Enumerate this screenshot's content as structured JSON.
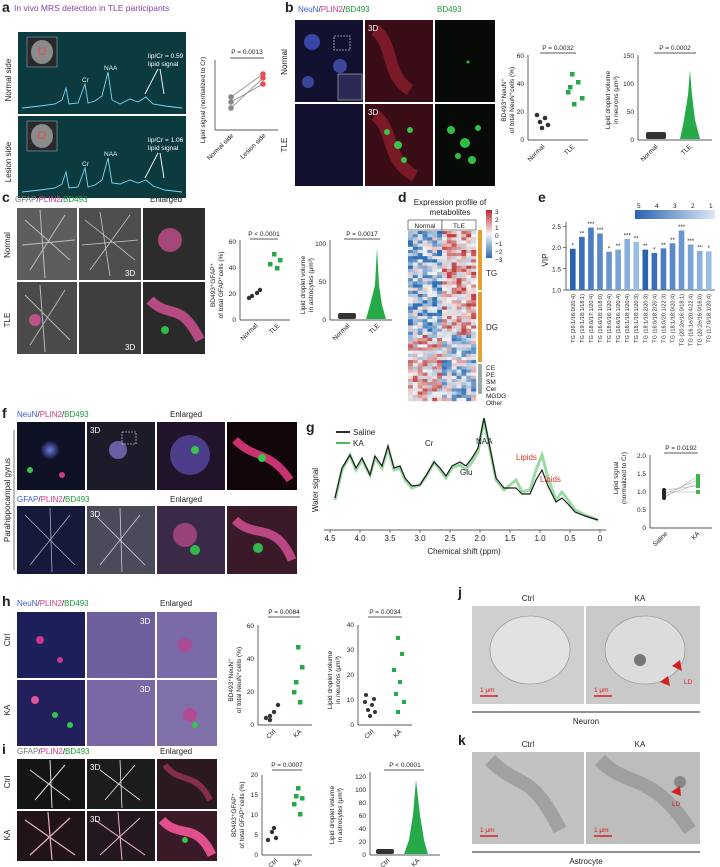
{
  "panels": {
    "a": {
      "letter": "a",
      "title": "In vivo MRS detection in TLE participants",
      "row_labels": [
        "Normal side",
        "Lesion side"
      ],
      "spec1": {
        "peaks": [
          "NAA",
          "Cr"
        ],
        "note": [
          "lip/Cr = 0.59",
          "lipid signal"
        ]
      },
      "spec2": {
        "peaks": [
          "NAA",
          "Cr"
        ],
        "note": [
          "lip/Cr = 1.06",
          "lipid signal"
        ]
      },
      "plot": {
        "pvalue": "P = 0.0013",
        "ylabel": "Lipid signal (normalized to Cr)",
        "xticks": [
          "Normal side",
          "Lesion side"
        ]
      }
    },
    "b": {
      "letter": "b",
      "stain_title": [
        "NeuN",
        "/",
        "PLIN2",
        "/",
        "BD493"
      ],
      "single_title": "BD493",
      "tag_3d": "3D",
      "row_labels": [
        "Normal",
        "TLE"
      ],
      "plot1": {
        "pvalue": "P = 0.0032",
        "ylabel": [
          "BD493⁺NeuN⁺",
          "of total NeuN⁺cells (%)"
        ],
        "yticks": [
          "0",
          "20",
          "40",
          "60"
        ],
        "xticks": [
          "Normal",
          "TLE"
        ]
      },
      "plot2": {
        "pvalue": "P = 0.0002",
        "ylabel": [
          "Lipid droplet volume",
          "in neurons (μm³)"
        ],
        "yticks": [
          "0",
          "50",
          "100",
          "150"
        ],
        "xticks": [
          "Normal",
          "TLE"
        ]
      }
    },
    "c": {
      "letter": "c",
      "stain_title": [
        "GFAP",
        "/",
        "PLIN2",
        "/",
        "BD493"
      ],
      "enlarged": "Enlarged",
      "tag_3d": "3D",
      "row_labels": [
        "Normal",
        "TLE"
      ],
      "plot1": {
        "pvalue": "P < 0.0001",
        "ylabel": [
          "BD493⁺GFAP⁺",
          "of total GFAP⁺cells (%)"
        ],
        "yticks": [
          "0",
          "20",
          "40",
          "60"
        ],
        "xticks": [
          "Normal",
          "TLE"
        ]
      },
      "plot2": {
        "pvalue": "P = 0.0017",
        "ylabel": [
          "Lipid droplet volume",
          "in astrocytes (μm³)"
        ],
        "yticks": [
          "0",
          "50",
          "100"
        ],
        "xticks": [
          "Normal",
          "TLE"
        ]
      }
    },
    "d": {
      "letter": "d",
      "title": [
        "Expression profile of",
        "metabolites"
      ],
      "groups": [
        "Normal",
        "TLE"
      ],
      "scale_ticks": [
        "3",
        "2",
        "1",
        "0",
        "−1",
        "−2",
        "−3"
      ],
      "classes": [
        "TG",
        "DG",
        "CE",
        "PE",
        "SM",
        "Cer",
        "MGDG",
        "Other"
      ]
    },
    "e": {
      "letter": "e",
      "ylabel": "VIP",
      "yticks": [
        "1.0",
        "1.5",
        "2.0",
        "2.5"
      ],
      "legend_ticks": [
        "5",
        "4",
        "3",
        "2",
        "1"
      ]
    },
    "f": {
      "letter": "f",
      "side_label": "Parahippocampal gyrus",
      "stain1": [
        "NeuN",
        "/",
        "PLIN2",
        "/",
        "BD493"
      ],
      "stain2": [
        "GFAP",
        "/",
        "PLIN2",
        "/",
        "BD493"
      ],
      "enlarged": "Enlarged",
      "tag_3d": "3D"
    },
    "g": {
      "letter": "g",
      "legend": [
        "Saline",
        "KA"
      ],
      "ylabel": "Water signal",
      "xlabel": "Chemical shift (ppm)",
      "xticks": [
        "4.5",
        "4.0",
        "3.5",
        "3.0",
        "2.5",
        "2.0",
        "1.5",
        "1.0",
        "0.5",
        "0"
      ],
      "peaks": [
        "Cr",
        "NAA",
        "Glu",
        "Lipids",
        "Lipids"
      ],
      "plot": {
        "pvalue": "P = 0.0192",
        "ylabel": [
          "Lipid signal",
          "(normalized to Cr)"
        ],
        "yticks": [
          "0",
          "0.5",
          "1.0",
          "1.5",
          "2.0"
        ],
        "xticks": [
          "Saline",
          "KA"
        ]
      }
    },
    "h": {
      "letter": "h",
      "stain_title": [
        "NeuN",
        "/",
        "PLIN2",
        "/",
        "BD493"
      ],
      "enlarged": "Enlarged",
      "tag_3d": "3D",
      "row_labels": [
        "Ctrl",
        "KA"
      ],
      "plot1": {
        "pvalue": "P = 0.0084",
        "ylabel": [
          "BD493⁺NeuN⁺",
          "of total NeuN⁺cells (%)"
        ],
        "yticks": [
          "0",
          "20",
          "40",
          "60"
        ],
        "xticks": [
          "Ctrl",
          "KA"
        ]
      },
      "plot2": {
        "pvalue": "P = 0.0034",
        "ylabel": [
          "Lipid droplet volume",
          "in neurons (μm³)"
        ],
        "yticks": [
          "0",
          "10",
          "20",
          "30",
          "40"
        ],
        "xticks": [
          "Ctrl",
          "KA"
        ]
      }
    },
    "i": {
      "letter": "i",
      "stain_title": [
        "GFAP",
        "/",
        "PLIN2",
        "/",
        "BD493"
      ],
      "enlarged": "Enlarged",
      "tag_3d": "3D",
      "row_labels": [
        "Ctrl",
        "KA"
      ],
      "plot1": {
        "pvalue": "P = 0.0007",
        "ylabel": [
          "BD493⁺GFAP⁺",
          "of total GFAP⁺cells (%)"
        ],
        "yticks": [
          "0",
          "5",
          "10",
          "15",
          "20"
        ],
        "xticks": [
          "Ctrl",
          "KA"
        ]
      },
      "plot2": {
        "pvalue": "P < 0.0001",
        "ylabel": [
          "Lipid droplet volume",
          "in astrocytes (μm³)"
        ],
        "yticks": [
          "0",
          "20",
          "40",
          "60",
          "80",
          "100",
          "120"
        ],
        "xticks": [
          "Ctrl",
          "KA"
        ]
      }
    },
    "j": {
      "letter": "j",
      "cols": [
        "Ctrl",
        "KA"
      ],
      "scale": [
        "1 μm",
        "1 μm"
      ],
      "ld": "LD",
      "caption": "Neuron"
    },
    "k": {
      "letter": "k",
      "cols": [
        "Ctrl",
        "KA"
      ],
      "scale": [
        "1 μm",
        "1 μm"
      ],
      "ld": "LD",
      "caption": "Astrocyte"
    }
  },
  "chart_data": [
    {
      "type": "bar",
      "panel": "e",
      "categories": [
        "TG (26:1/16:0/20:4)",
        "TG (19:1/18:1/18:1)",
        "TG (18:0/17:1/20:4)",
        "TG (16:0/18:1/18:0)",
        "TG (18:0/16:1/20:4)",
        "TG (16:0/16:1/20:4)",
        "TG (18:1/18:1/20:4)",
        "TG (18:1/18:1/20:3)",
        "TG (18:1/18:2/20:3)",
        "TG (16:0/18:2/20:4)",
        "TG (16:0/20:1/22:3)",
        "TG (18:1/18:0/20:4)",
        "TG (20:2e/16:0/18:1)",
        "TG (16:1e/20:4/22:4)",
        "TG (20:2e/16:0/16:0)",
        "TG (17:0/18:1/20:4)"
      ],
      "values": [
        1.97,
        2.25,
        2.47,
        2.33,
        1.9,
        1.95,
        2.2,
        2.13,
        1.95,
        1.87,
        1.98,
        2.1,
        2.4,
        2.07,
        1.92,
        1.91
      ],
      "significance": [
        "*",
        "**",
        "***",
        "***",
        "*",
        "**",
        "***",
        "**",
        "**",
        "*",
        "**",
        "**",
        "***",
        "***",
        "**",
        "*"
      ],
      "ylabel": "VIP",
      "ylim": [
        1.0,
        2.6
      ]
    }
  ]
}
